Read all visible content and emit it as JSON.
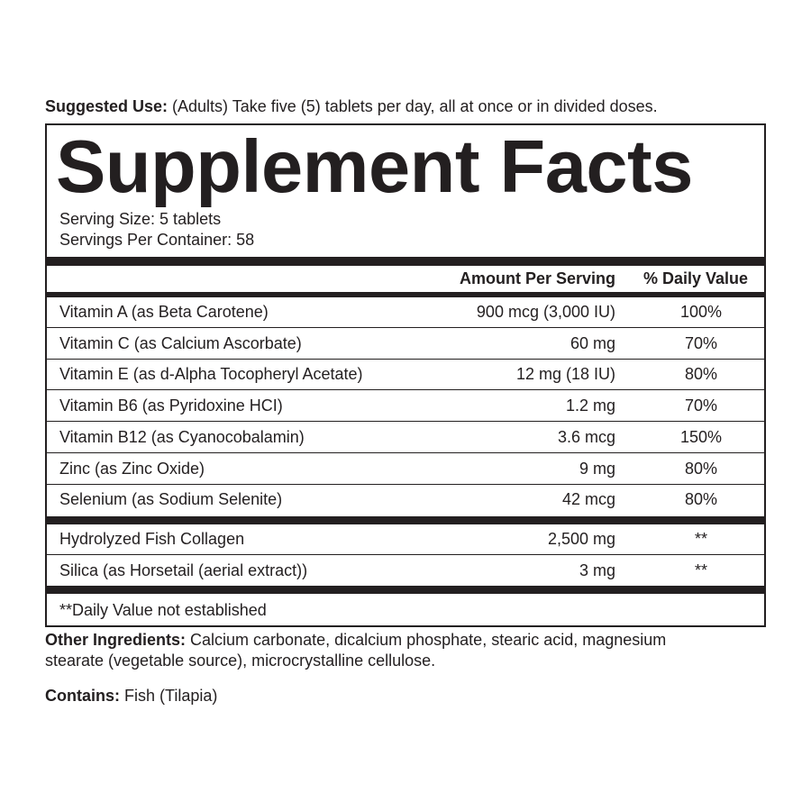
{
  "suggested_use": {
    "label": "Suggested Use:",
    "text": " (Adults) Take five (5) tablets per day, all at once or in divided doses."
  },
  "facts": {
    "title": "Supplement Facts",
    "serving_size": "Serving Size: 5 tablets",
    "servings_per_container": "Servings Per Container: 58",
    "header": {
      "amount": "Amount Per Serving",
      "dv": "% Daily Value"
    },
    "group1": [
      {
        "name": "Vitamin A (as Beta Carotene)",
        "amount": "900 mcg (3,000 IU)",
        "dv": "100%"
      },
      {
        "name": "Vitamin C (as Calcium Ascorbate)",
        "amount": "60 mg",
        "dv": "70%"
      },
      {
        "name": "Vitamin E (as d-Alpha Tocopheryl Acetate)",
        "amount": "12 mg (18 IU)",
        "dv": "80%"
      },
      {
        "name": "Vitamin B6 (as Pyridoxine HCI)",
        "amount": "1.2 mg",
        "dv": "70%"
      },
      {
        "name": "Vitamin B12 (as Cyanocobalamin)",
        "amount": "3.6 mcg",
        "dv": "150%"
      },
      {
        "name": "Zinc (as Zinc Oxide)",
        "amount": "9 mg",
        "dv": "80%"
      },
      {
        "name": "Selenium (as Sodium Selenite)",
        "amount": "42 mcg",
        "dv": "80%"
      }
    ],
    "group2": [
      {
        "name": "Hydrolyzed Fish Collagen",
        "amount": "2,500 mg",
        "dv": "**"
      },
      {
        "name": "Silica (as Horsetail (aerial extract))",
        "amount": "3 mg",
        "dv": "**"
      }
    ],
    "footnote": "**Daily Value not established"
  },
  "other_ingredients": {
    "label": "Other Ingredients:",
    "text": " Calcium carbonate, dicalcium phosphate, stearic acid, magnesium",
    "text2": "stearate (vegetable source), microcrystalline cellulose."
  },
  "contains": {
    "label": "Contains:",
    "text": " Fish (Tilapia)"
  }
}
